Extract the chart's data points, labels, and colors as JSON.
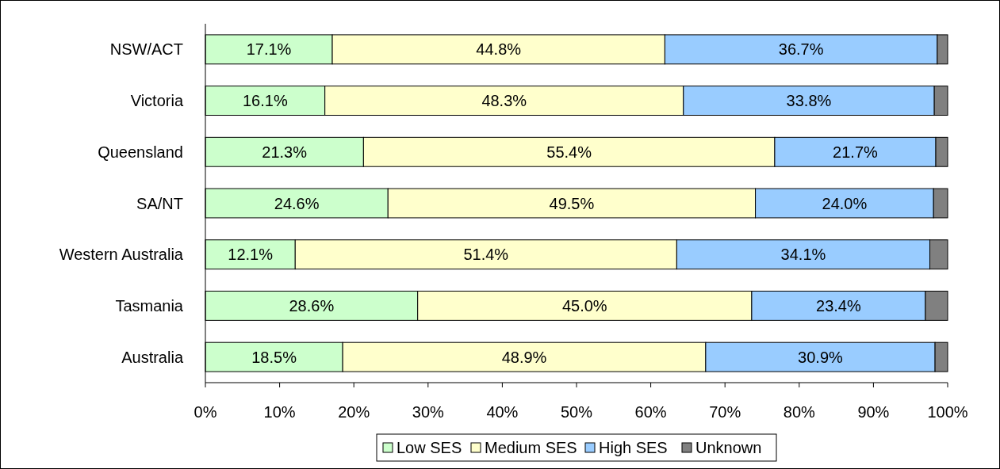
{
  "chart_data": {
    "type": "bar",
    "orientation": "horizontal",
    "stacked": true,
    "categories": [
      "NSW/ACT",
      "Victoria",
      "Queensland",
      "SA/NT",
      "Western Australia",
      "Tasmania",
      "Australia"
    ],
    "series": [
      {
        "name": "Low SES",
        "color": "#ccffcc",
        "values": [
          17.1,
          16.1,
          21.3,
          24.6,
          12.1,
          28.6,
          18.5
        ],
        "value_labels": [
          "17.1%",
          "16.1%",
          "21.3%",
          "24.6%",
          "12.1%",
          "28.6%",
          "18.5%"
        ]
      },
      {
        "name": "Medium SES",
        "color": "#ffffcc",
        "values": [
          44.8,
          48.3,
          55.4,
          49.5,
          51.4,
          45.0,
          48.9
        ],
        "value_labels": [
          "44.8%",
          "48.3%",
          "55.4%",
          "49.5%",
          "51.4%",
          "45.0%",
          "48.9%"
        ]
      },
      {
        "name": "High SES",
        "color": "#99ccff",
        "values": [
          36.7,
          33.8,
          21.7,
          24.0,
          34.1,
          23.4,
          30.9
        ],
        "value_labels": [
          "36.7%",
          "33.8%",
          "21.7%",
          "24.0%",
          "34.1%",
          "23.4%",
          "30.9%"
        ]
      },
      {
        "name": "Unknown",
        "color": "#808080",
        "values": [
          1.4,
          1.8,
          1.6,
          1.9,
          2.4,
          3.0,
          1.7
        ]
      }
    ],
    "xlim": [
      0,
      100
    ],
    "xticks": [
      {
        "value": 0,
        "label": "0%"
      },
      {
        "value": 10,
        "label": "10%"
      },
      {
        "value": 20,
        "label": "20%"
      },
      {
        "value": 30,
        "label": "30%"
      },
      {
        "value": 40,
        "label": "40%"
      },
      {
        "value": 50,
        "label": "50%"
      },
      {
        "value": 60,
        "label": "60%"
      },
      {
        "value": 70,
        "label": "70%"
      },
      {
        "value": 80,
        "label": "80%"
      },
      {
        "value": 90,
        "label": "90%"
      },
      {
        "value": 100,
        "label": "100%"
      }
    ],
    "legend": "bottom",
    "grid": false
  }
}
